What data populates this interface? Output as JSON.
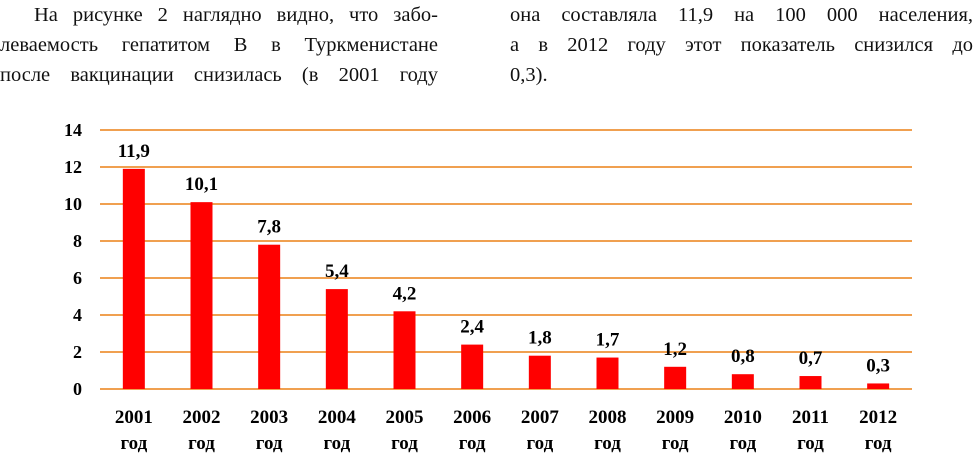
{
  "text": {
    "left": [
      "На рисунке 2 наглядно видно, что забо-",
      "леваемость гепатитом В в Туркменистане",
      "после вакцинации снизилась (в 2001 году"
    ],
    "right": [
      "она составляла 11,9 на 100 000 населения,",
      "а в 2012 году этот показатель снизился до",
      "0,3)."
    ]
  },
  "chart_data": {
    "type": "bar",
    "categories": [
      [
        "2001",
        "год"
      ],
      [
        "2002",
        "год"
      ],
      [
        "2003",
        "год"
      ],
      [
        "2004",
        "год"
      ],
      [
        "2005",
        "год"
      ],
      [
        "2006",
        "год"
      ],
      [
        "2007",
        "год"
      ],
      [
        "2008",
        "год"
      ],
      [
        "2009",
        "год"
      ],
      [
        "2010",
        "год"
      ],
      [
        "2011",
        "год"
      ],
      [
        "2012",
        "год"
      ]
    ],
    "values": [
      11.9,
      10.1,
      7.8,
      5.4,
      4.2,
      2.4,
      1.8,
      1.7,
      1.2,
      0.8,
      0.7,
      0.3
    ],
    "data_labels": [
      "11,9",
      "10,1",
      "7,8",
      "5,4",
      "4,2",
      "2,4",
      "1,8",
      "1,7",
      "1,2",
      "0,8",
      "0,7",
      "0,3"
    ],
    "yticks": [
      0,
      2,
      4,
      6,
      8,
      10,
      12,
      14
    ],
    "ylim": [
      0,
      14
    ],
    "grid": true,
    "bar_color": "#ff0000",
    "grid_color": "#f0a050"
  }
}
